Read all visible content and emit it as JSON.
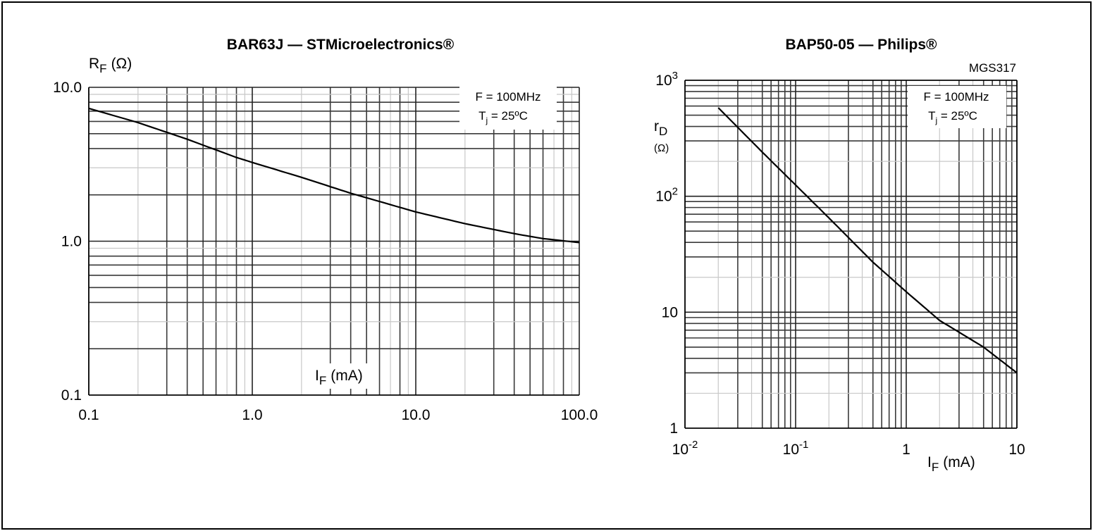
{
  "chart_data": [
    {
      "type": "line",
      "title": "BAR63J — STMicroelectronics®",
      "ylabel_main": "R",
      "ylabel_sub": "F",
      "ylabel_unit": "(Ω)",
      "xlabel_main": "I",
      "xlabel_sub": "F",
      "xlabel_unit": "(mA)",
      "x_scale": "log",
      "y_scale": "log",
      "xlim": [
        0.1,
        100
      ],
      "ylim": [
        0.1,
        10
      ],
      "x_ticks": [
        {
          "value": 0.1,
          "label": "0.1"
        },
        {
          "value": 1,
          "label": "1.0"
        },
        {
          "value": 10,
          "label": "10.0"
        },
        {
          "value": 100,
          "label": "100.0"
        }
      ],
      "y_ticks": [
        {
          "value": 10,
          "label": "10.0"
        },
        {
          "value": 1,
          "label": "1.0"
        },
        {
          "value": 0.1,
          "label": "0.1"
        }
      ],
      "annotation": {
        "line1": "F = 100MHz",
        "line2_main": "T",
        "line2_sub": "j",
        "line2_rest": " = 25ºC"
      },
      "grid": true,
      "series": [
        {
          "x": [
            0.1,
            0.2,
            0.4,
            0.8,
            1.0,
            2.0,
            4.0,
            10,
            20,
            40,
            60,
            100
          ],
          "y": [
            7.3,
            5.9,
            4.6,
            3.5,
            3.25,
            2.6,
            2.05,
            1.55,
            1.3,
            1.12,
            1.04,
            0.98
          ]
        }
      ]
    },
    {
      "type": "line",
      "title": "BAP50-05 — Philips®",
      "code": "MGS317",
      "ylabel_main": "r",
      "ylabel_sub": "D",
      "ylabel_unit": "(Ω)",
      "xlabel_main": "I",
      "xlabel_sub": "F",
      "xlabel_unit": "(mA)",
      "x_scale": "log",
      "y_scale": "log",
      "xlim": [
        0.01,
        10
      ],
      "ylim": [
        1,
        1000
      ],
      "x_ticks": [
        {
          "value": 0.01,
          "base": "10",
          "exp": "-2"
        },
        {
          "value": 0.1,
          "base": "10",
          "exp": "-1"
        },
        {
          "value": 1,
          "base": "1",
          "exp": ""
        },
        {
          "value": 10,
          "base": "10",
          "exp": ""
        }
      ],
      "y_ticks": [
        {
          "value": 1000,
          "base": "10",
          "exp": "3"
        },
        {
          "value": 100,
          "base": "10",
          "exp": "2"
        },
        {
          "value": 10,
          "base": "10",
          "exp": ""
        },
        {
          "value": 1,
          "base": "1",
          "exp": ""
        }
      ],
      "annotation": {
        "line1": "F = 100MHz",
        "line2_main": "T",
        "line2_sub": "j",
        "line2_rest": " = 25ºC"
      },
      "grid": true,
      "series": [
        {
          "x": [
            0.02,
            0.05,
            0.1,
            0.2,
            0.5,
            1,
            2,
            5,
            10
          ],
          "y": [
            580,
            240,
            125,
            65,
            27,
            15,
            8.5,
            5.0,
            3.0
          ]
        }
      ]
    }
  ]
}
